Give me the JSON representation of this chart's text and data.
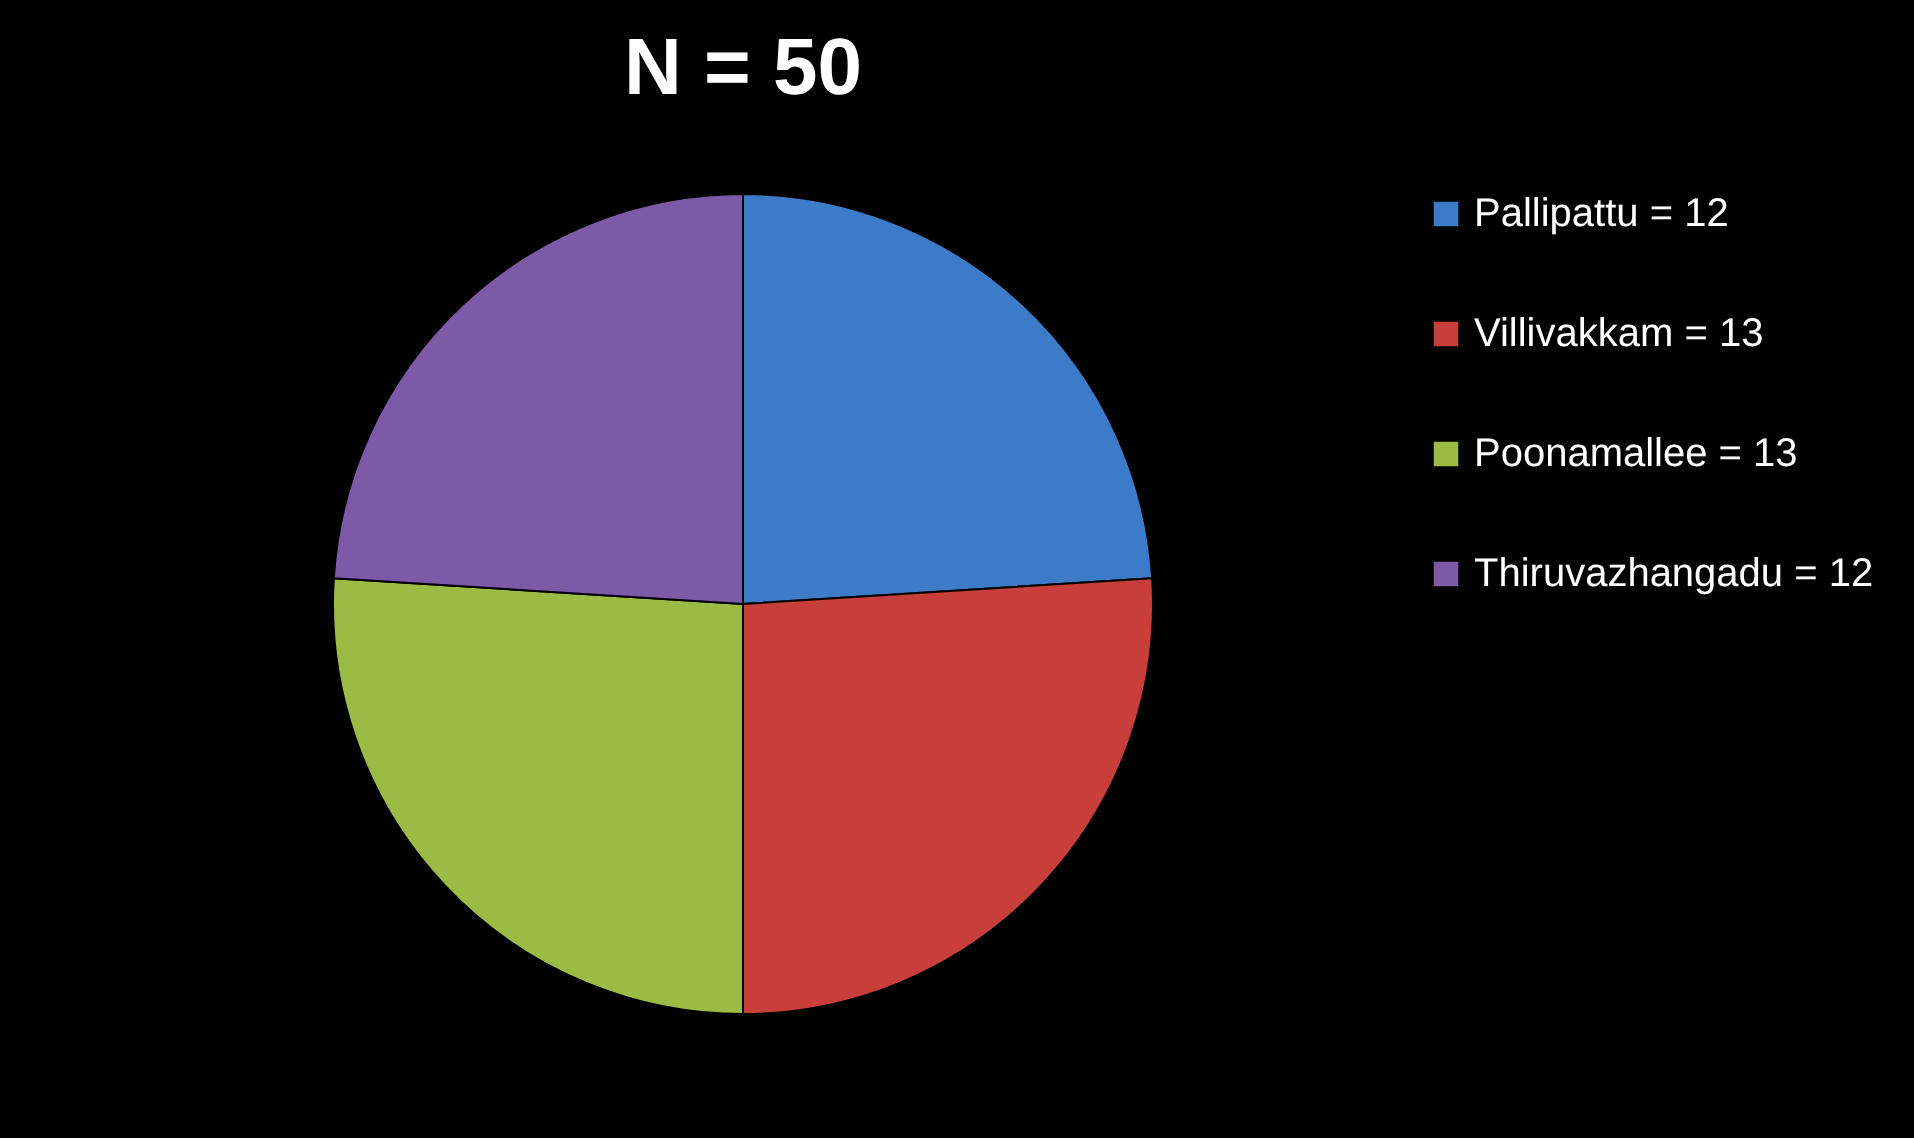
{
  "chart_data": {
    "type": "pie",
    "title": "N = 50",
    "categories": [
      "Pallipattu = 12",
      "Villivakkam = 13",
      "Poonamallee = 13",
      "Thiruvazhangadu = 12"
    ],
    "values": [
      12,
      13,
      13,
      12
    ],
    "colors": [
      "#3b7bc8",
      "#c73e3a",
      "#9bbb45",
      "#7d5aa8"
    ],
    "legend": "right"
  }
}
